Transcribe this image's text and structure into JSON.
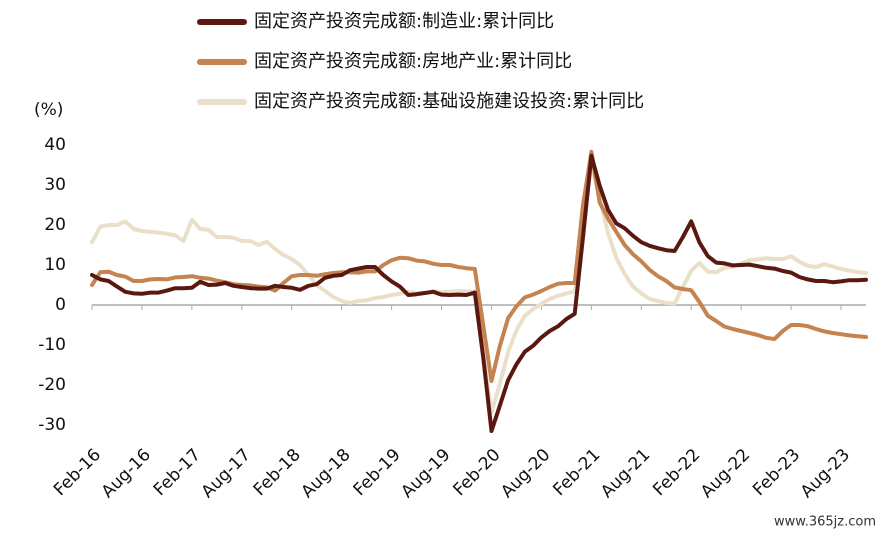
{
  "chart_data": {
    "type": "line",
    "y_label": "(%)",
    "watermark": "www.365jz.com",
    "categories": [
      "Feb-16",
      null,
      null,
      null,
      null,
      null,
      "Aug-16",
      null,
      null,
      null,
      null,
      null,
      "Feb-17",
      null,
      null,
      null,
      null,
      null,
      "Aug-17",
      null,
      null,
      null,
      null,
      null,
      "Feb-18",
      null,
      null,
      null,
      null,
      null,
      "Aug-18",
      null,
      null,
      null,
      null,
      null,
      "Feb-19",
      null,
      null,
      null,
      null,
      null,
      "Aug-19",
      null,
      null,
      null,
      null,
      null,
      "Feb-20",
      null,
      null,
      null,
      null,
      null,
      "Aug-20",
      null,
      null,
      null,
      null,
      null,
      "Feb-21",
      null,
      null,
      null,
      null,
      null,
      "Aug-21",
      null,
      null,
      null,
      null,
      null,
      "Feb-22",
      null,
      null,
      null,
      null,
      null,
      "Aug-22",
      null,
      null,
      null,
      null,
      null,
      "Feb-23",
      null,
      null,
      null,
      null,
      null,
      "Aug-23",
      null,
      null,
      null
    ],
    "ylim": [
      -30,
      40
    ],
    "yticks": [
      -30,
      -20,
      -10,
      0,
      10,
      20,
      30,
      40
    ],
    "legend": "top-left",
    "series": [
      {
        "name": "固定资产投资完成额:制造业:累计同比",
        "color": "#5a1810",
        "values": [
          7.5,
          6.4,
          6.0,
          4.6,
          3.3,
          2.9,
          2.8,
          3.1,
          3.1,
          3.6,
          4.2,
          4.2,
          4.3,
          5.8,
          5.0,
          5.1,
          5.5,
          4.8,
          4.5,
          4.2,
          4.1,
          4.1,
          4.8,
          4.5,
          4.3,
          3.8,
          4.8,
          5.2,
          6.8,
          7.3,
          7.5,
          8.7,
          9.1,
          9.5,
          9.5,
          7.5,
          5.9,
          4.6,
          2.5,
          2.7,
          3.0,
          3.3,
          2.6,
          2.5,
          2.6,
          2.5,
          3.1,
          -13,
          -31.5,
          -25.2,
          -18.8,
          -14.8,
          -11.7,
          -10.2,
          -8.1,
          -6.5,
          -5.3,
          -3.5,
          -2.2,
          17,
          37.3,
          29.8,
          23.8,
          20.4,
          19.2,
          17.3,
          15.7,
          14.8,
          14.2,
          13.7,
          13.5,
          17,
          20.9,
          15.6,
          12.2,
          10.6,
          10.4,
          9.9,
          10.0,
          10.1,
          9.7,
          9.3,
          9.1,
          8.5,
          8.1,
          7.0,
          6.4,
          6.0,
          6.0,
          5.7,
          5.9,
          6.2,
          6.2,
          6.3
        ]
      },
      {
        "name": "固定资产投资完成额:房地产业:累计同比",
        "color": "#c4834f",
        "values": [
          5,
          8.2,
          8.3,
          7.5,
          7.1,
          6.0,
          6.0,
          6.4,
          6.5,
          6.4,
          6.9,
          7.0,
          7.2,
          6.8,
          6.6,
          6.1,
          5.7,
          5.2,
          5.0,
          4.9,
          4.6,
          4.4,
          3.6,
          5.5,
          7.2,
          7.5,
          7.5,
          7.3,
          7.7,
          8.0,
          8.2,
          8.2,
          8.1,
          8.4,
          8.4,
          10,
          11.2,
          11.8,
          11.7,
          11.1,
          10.9,
          10.3,
          10.0,
          10.0,
          9.5,
          9.2,
          9.0,
          -5,
          -19,
          -10.3,
          -3.3,
          -0.3,
          1.9,
          2.6,
          3.5,
          4.5,
          5.3,
          5.5,
          5.5,
          25,
          38.3,
          25.6,
          21.6,
          18.3,
          15.0,
          12.7,
          10.9,
          8.8,
          7.2,
          6.0,
          4.4,
          4.0,
          3.7,
          0.7,
          -2.7,
          -4.0,
          -5.4,
          -6.0,
          -6.5,
          -7.0,
          -7.5,
          -8.2,
          -8.5,
          -6.5,
          -5.0,
          -5.0,
          -5.3,
          -6.0,
          -6.6,
          -7.0,
          -7.3,
          -7.6,
          -7.8,
          -8.0
        ]
      },
      {
        "name": "固定资产投资完成额:基础设施建设投资:累计同比",
        "color": "#eadfc9",
        "values": [
          15.7,
          19.6,
          20.0,
          20.0,
          20.9,
          19.0,
          18.5,
          18.3,
          18.1,
          17.8,
          17.4,
          16,
          21.3,
          19.0,
          18.8,
          17.0,
          17.0,
          16.8,
          16.0,
          16.0,
          15.0,
          15.8,
          14.0,
          12.5,
          11.5,
          10.0,
          7.5,
          5.0,
          3.5,
          2.0,
          1.0,
          0.5,
          1.0,
          1.2,
          1.7,
          2.0,
          2.5,
          2.8,
          3.3,
          3.0,
          3.0,
          3.5,
          3.2,
          3.3,
          3.5,
          3.4,
          3.3,
          -12,
          -26.9,
          -19.7,
          -11.8,
          -6.3,
          -2.7,
          -1.0,
          0.3,
          1.5,
          2.3,
          2.9,
          3.4,
          20,
          35.0,
          26.8,
          18.0,
          11.8,
          7.8,
          4.6,
          2.9,
          1.5,
          1.0,
          0.5,
          0.4,
          4.5,
          8.6,
          10.5,
          8.3,
          8.2,
          9.3,
          9.6,
          10.4,
          11.2,
          11.4,
          11.7,
          11.5,
          11.5,
          12.2,
          10.8,
          9.8,
          9.5,
          10.2,
          9.6,
          9.0,
          8.6,
          8.2,
          8.0
        ]
      }
    ]
  }
}
